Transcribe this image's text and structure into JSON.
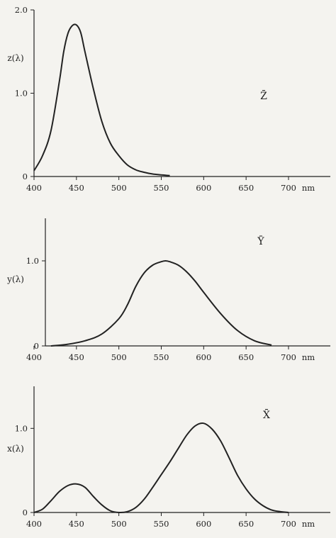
{
  "colors": {
    "background": "#f4f3ef",
    "ink": "#222222"
  },
  "chart_data": [
    {
      "type": "line",
      "panel": "z",
      "ylabel": "z(λ)",
      "series_label": "Z̄",
      "xlabel": "nm",
      "xlim": [
        400,
        700
      ],
      "ylim": [
        0,
        2.0
      ],
      "x_ticks": [
        "400",
        "450",
        "500",
        "550",
        "600",
        "650",
        "700"
      ],
      "y_ticks": [
        {
          "value": 0,
          "label": "0"
        },
        {
          "value": 1.0,
          "label": "1.0"
        },
        {
          "value": 2.0,
          "label": "2.0"
        }
      ],
      "grid": false,
      "series": [
        {
          "x": [
            400,
            410,
            420,
            430,
            435,
            440,
            445,
            450,
            455,
            460,
            470,
            480,
            490,
            500,
            510,
            520,
            530,
            540,
            550,
            560
          ],
          "y": [
            0.07,
            0.25,
            0.55,
            1.15,
            1.5,
            1.72,
            1.81,
            1.82,
            1.73,
            1.5,
            1.05,
            0.66,
            0.4,
            0.25,
            0.14,
            0.08,
            0.05,
            0.03,
            0.02,
            0.01
          ]
        }
      ]
    },
    {
      "type": "line",
      "panel": "y",
      "ylabel": "y(λ)",
      "series_label": "Ȳ",
      "xlabel": "nm",
      "xlim": [
        400,
        700
      ],
      "ylim": [
        0,
        1.5
      ],
      "x_ticks": [
        "400",
        "450",
        "500",
        "550",
        "600",
        "650",
        "700"
      ],
      "y_ticks": [
        {
          "value": 0,
          "label": "0"
        },
        {
          "value": 1.0,
          "label": "1.0"
        }
      ],
      "grid": false,
      "series": [
        {
          "x": [
            420,
            440,
            460,
            480,
            500,
            510,
            520,
            530,
            540,
            550,
            555,
            560,
            570,
            580,
            590,
            600,
            620,
            640,
            660,
            680
          ],
          "y": [
            0.0,
            0.02,
            0.06,
            0.14,
            0.32,
            0.48,
            0.7,
            0.86,
            0.95,
            0.99,
            1.0,
            0.99,
            0.95,
            0.87,
            0.76,
            0.63,
            0.38,
            0.18,
            0.06,
            0.01
          ]
        }
      ]
    },
    {
      "type": "line",
      "panel": "x",
      "ylabel": "x(λ)",
      "series_label": "X̄",
      "xlabel": "nm",
      "xlim": [
        400,
        700
      ],
      "ylim": [
        0,
        1.5
      ],
      "x_ticks": [
        "400",
        "450",
        "500",
        "550",
        "600",
        "650",
        "700"
      ],
      "y_ticks": [
        {
          "value": 0,
          "label": "0"
        },
        {
          "value": 1.0,
          "label": "1.0"
        }
      ],
      "grid": false,
      "series": [
        {
          "x": [
            400,
            410,
            420,
            430,
            440,
            450,
            460,
            470,
            480,
            490,
            500,
            510,
            520,
            530,
            540,
            550,
            560,
            570,
            580,
            590,
            600,
            610,
            620,
            630,
            640,
            650,
            660,
            670,
            680,
            690,
            700
          ],
          "y": [
            0.0,
            0.04,
            0.14,
            0.25,
            0.32,
            0.34,
            0.3,
            0.19,
            0.09,
            0.02,
            0.0,
            0.01,
            0.06,
            0.16,
            0.3,
            0.45,
            0.6,
            0.76,
            0.92,
            1.03,
            1.06,
            0.99,
            0.85,
            0.65,
            0.44,
            0.28,
            0.16,
            0.08,
            0.03,
            0.01,
            0.0
          ]
        }
      ]
    }
  ]
}
